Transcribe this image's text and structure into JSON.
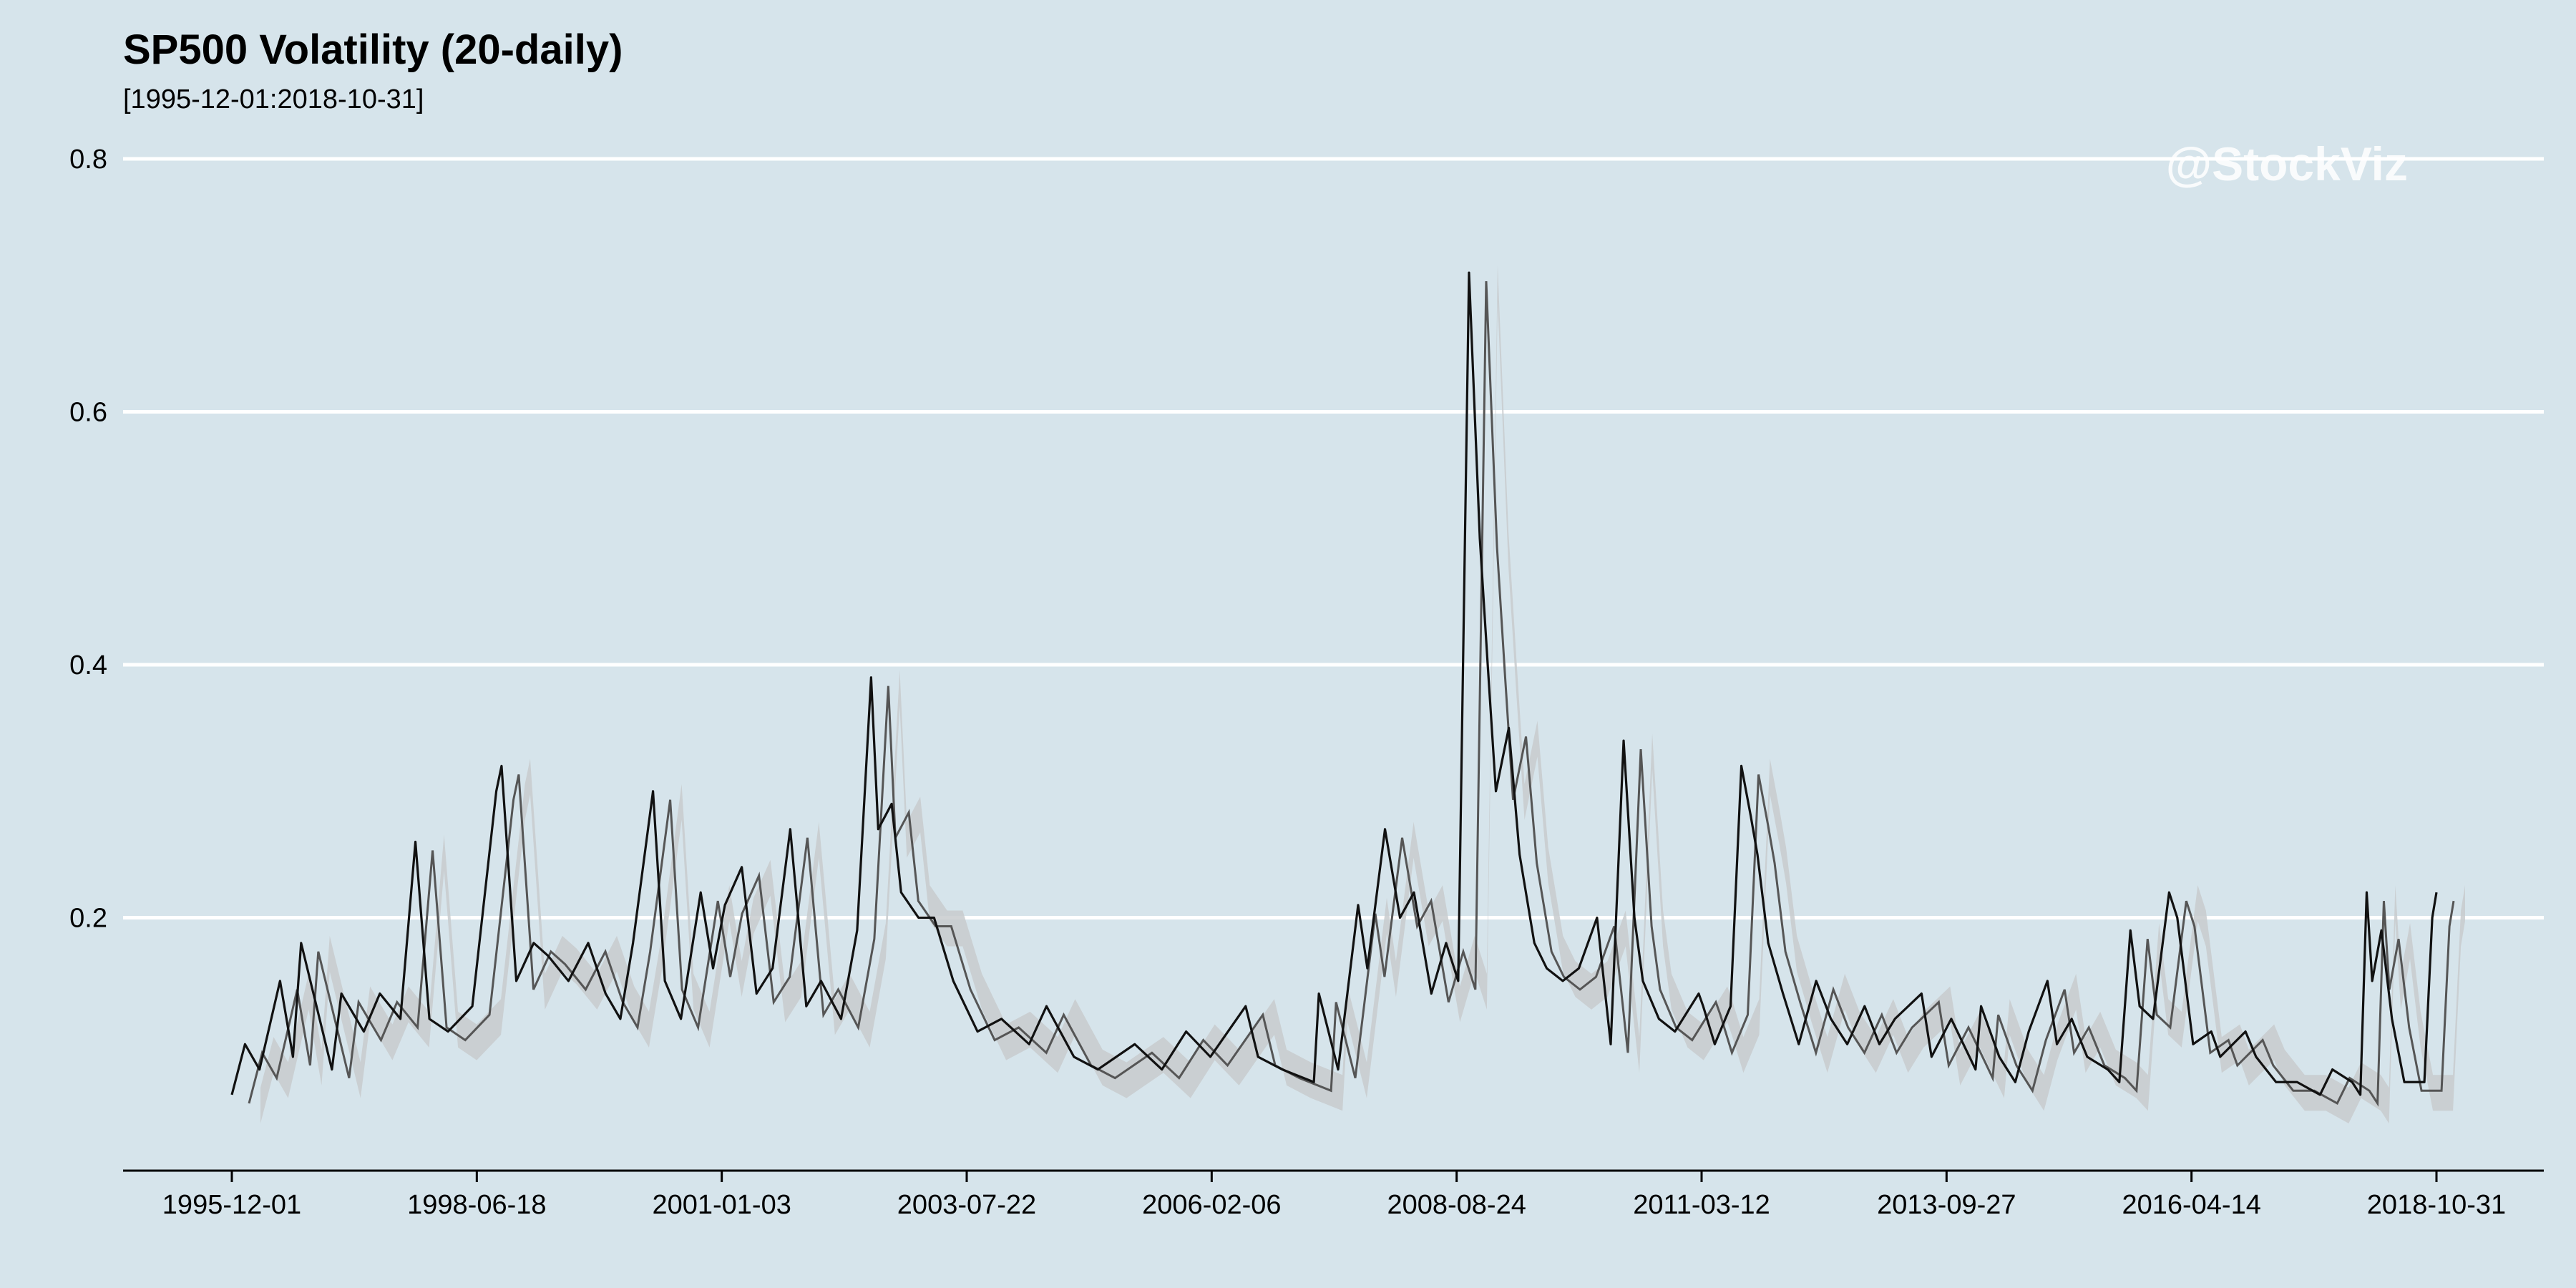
{
  "chart_data": {
    "type": "line",
    "title": "SP500 Volatility (20-daily)",
    "subtitle": "[1995-12-01:2018-10-31]",
    "watermark": "@StockViz",
    "xlabel": "",
    "ylabel": "",
    "x_ticks": [
      "1995-12-01",
      "1998-06-18",
      "2001-01-03",
      "2003-07-22",
      "2006-02-06",
      "2008-08-24",
      "2011-03-12",
      "2013-09-27",
      "2016-04-14",
      "2018-10-31"
    ],
    "y_ticks": [
      0.2,
      0.4,
      0.6,
      0.8
    ],
    "xlim": [
      "1995-12-01",
      "2018-10-31"
    ],
    "ylim": [
      0.0,
      0.8
    ],
    "grid": "horizontal",
    "colors": {
      "line": "#111111",
      "band": "#c8cbce",
      "grid": "#ffffff",
      "background": "#d6e4eb"
    },
    "series": [
      {
        "x": [
          "1995-12-01",
          "1996-01-20",
          "1996-03-15",
          "1996-06-01",
          "1996-07-20",
          "1996-08-20",
          "1996-12-15",
          "1997-01-20",
          "1997-04-15",
          "1997-06-15",
          "1997-09-01",
          "1997-10-28",
          "1997-12-20",
          "1998-03-01",
          "1998-06-01",
          "1998-08-31",
          "1998-09-20",
          "1998-11-15",
          "1999-01-20",
          "1999-03-15",
          "1999-06-01",
          "1999-08-15",
          "1999-10-20",
          "1999-12-15",
          "2000-02-01",
          "2000-04-17",
          "2000-06-01",
          "2000-08-01",
          "2000-10-15",
          "2000-12-01",
          "2001-01-15",
          "2001-03-20",
          "2001-05-15",
          "2001-07-15",
          "2001-09-20",
          "2001-11-20",
          "2002-01-15",
          "2002-04-01",
          "2002-06-01",
          "2002-07-24",
          "2002-08-20",
          "2002-10-10",
          "2002-11-15",
          "2003-01-20",
          "2003-03-20",
          "2003-06-01",
          "2003-09-01",
          "2003-12-01",
          "2004-03-15",
          "2004-05-20",
          "2004-09-01",
          "2004-12-01",
          "2005-04-20",
          "2005-08-01",
          "2005-11-01",
          "2006-02-01",
          "2006-06-15",
          "2006-08-01",
          "2006-11-01",
          "2007-03-01",
          "2007-03-20",
          "2007-06-01",
          "2007-08-16",
          "2007-09-20",
          "2007-11-26",
          "2008-01-22",
          "2008-03-15",
          "2008-05-20",
          "2008-07-15",
          "2008-08-30",
          "2008-10-10",
          "2008-11-20",
          "2008-12-20",
          "2009-01-20",
          "2009-03-10",
          "2009-04-20",
          "2009-06-15",
          "2009-08-01",
          "2009-10-01",
          "2009-12-01",
          "2010-02-08",
          "2010-04-01",
          "2010-05-20",
          "2010-06-30",
          "2010-08-01",
          "2010-10-01",
          "2010-12-01",
          "2011-03-01",
          "2011-03-18",
          "2011-05-01",
          "2011-06-30",
          "2011-08-10",
          "2011-09-15",
          "2011-10-10",
          "2011-11-20",
          "2012-01-15",
          "2012-03-15",
          "2012-05-20",
          "2012-07-15",
          "2012-09-15",
          "2012-11-20",
          "2013-01-15",
          "2013-03-15",
          "2013-06-24",
          "2013-08-01",
          "2013-10-15",
          "2014-01-15",
          "2014-02-05",
          "2014-04-15",
          "2014-06-15",
          "2014-08-05",
          "2014-10-15",
          "2014-11-20",
          "2015-01-15",
          "2015-03-15",
          "2015-06-01",
          "2015-07-15",
          "2015-08-26",
          "2015-09-30",
          "2015-11-20",
          "2016-01-20",
          "2016-02-20",
          "2016-04-20",
          "2016-06-28",
          "2016-08-01",
          "2016-11-05",
          "2016-12-15",
          "2017-03-01",
          "2017-05-20",
          "2017-08-15",
          "2017-10-01",
          "2017-12-15",
          "2018-01-15",
          "2018-02-08",
          "2018-03-01",
          "2018-04-05",
          "2018-05-15",
          "2018-07-01",
          "2018-09-15",
          "2018-10-15",
          "2018-10-31"
        ],
        "values": [
          0.06,
          0.1,
          0.08,
          0.15,
          0.09,
          0.18,
          0.08,
          0.14,
          0.11,
          0.14,
          0.12,
          0.26,
          0.12,
          0.11,
          0.13,
          0.3,
          0.32,
          0.15,
          0.18,
          0.17,
          0.15,
          0.18,
          0.14,
          0.12,
          0.18,
          0.3,
          0.15,
          0.12,
          0.22,
          0.16,
          0.21,
          0.24,
          0.14,
          0.16,
          0.27,
          0.13,
          0.15,
          0.12,
          0.19,
          0.39,
          0.27,
          0.29,
          0.22,
          0.2,
          0.2,
          0.15,
          0.11,
          0.12,
          0.1,
          0.13,
          0.09,
          0.08,
          0.1,
          0.08,
          0.11,
          0.09,
          0.13,
          0.09,
          0.08,
          0.07,
          0.14,
          0.08,
          0.21,
          0.16,
          0.27,
          0.2,
          0.22,
          0.14,
          0.18,
          0.15,
          0.71,
          0.5,
          0.4,
          0.3,
          0.35,
          0.25,
          0.18,
          0.16,
          0.15,
          0.16,
          0.2,
          0.1,
          0.34,
          0.2,
          0.15,
          0.12,
          0.11,
          0.14,
          0.13,
          0.1,
          0.13,
          0.32,
          0.28,
          0.25,
          0.18,
          0.14,
          0.1,
          0.15,
          0.12,
          0.1,
          0.13,
          0.1,
          0.12,
          0.14,
          0.09,
          0.12,
          0.08,
          0.13,
          0.09,
          0.07,
          0.11,
          0.15,
          0.1,
          0.12,
          0.09,
          0.08,
          0.07,
          0.19,
          0.13,
          0.12,
          0.22,
          0.2,
          0.1,
          0.11,
          0.09,
          0.11,
          0.09,
          0.07,
          0.07,
          0.06,
          0.08,
          0.07,
          0.06,
          0.22,
          0.15,
          0.19,
          0.12,
          0.07,
          0.07,
          0.2,
          0.22
        ]
      }
    ]
  }
}
